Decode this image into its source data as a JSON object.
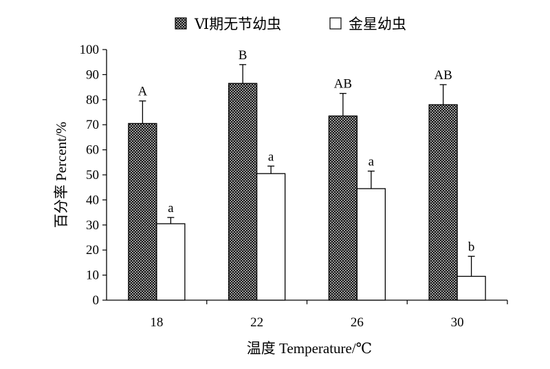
{
  "chart_data": {
    "type": "bar",
    "categories": [
      "18",
      "22",
      "26",
      "30"
    ],
    "series": [
      {
        "name": "Ⅵ期无节幼虫",
        "values": [
          70.5,
          86.5,
          73.5,
          78
        ],
        "errors": [
          9,
          7.5,
          9,
          8
        ],
        "letters": [
          "A",
          "B",
          "AB",
          "AB"
        ],
        "fill": "checkered"
      },
      {
        "name": "金星幼虫",
        "values": [
          30.5,
          50.5,
          44.5,
          9.5
        ],
        "errors": [
          2.5,
          3,
          7,
          8
        ],
        "letters": [
          "a",
          "a",
          "a",
          "b"
        ],
        "fill": "#ffffff"
      }
    ],
    "xlabel": "温度 Temperature/℃",
    "ylabel": "百分率 Percent/%",
    "ylim": [
      0,
      100
    ],
    "yticks": [
      0,
      10,
      20,
      30,
      40,
      50,
      60,
      70,
      80,
      90,
      100
    ],
    "legend_position": "top",
    "grid": false,
    "colors": {
      "axis": "#000000",
      "checker_dark": "#111111",
      "checker_light": "#9a9a9a"
    }
  }
}
